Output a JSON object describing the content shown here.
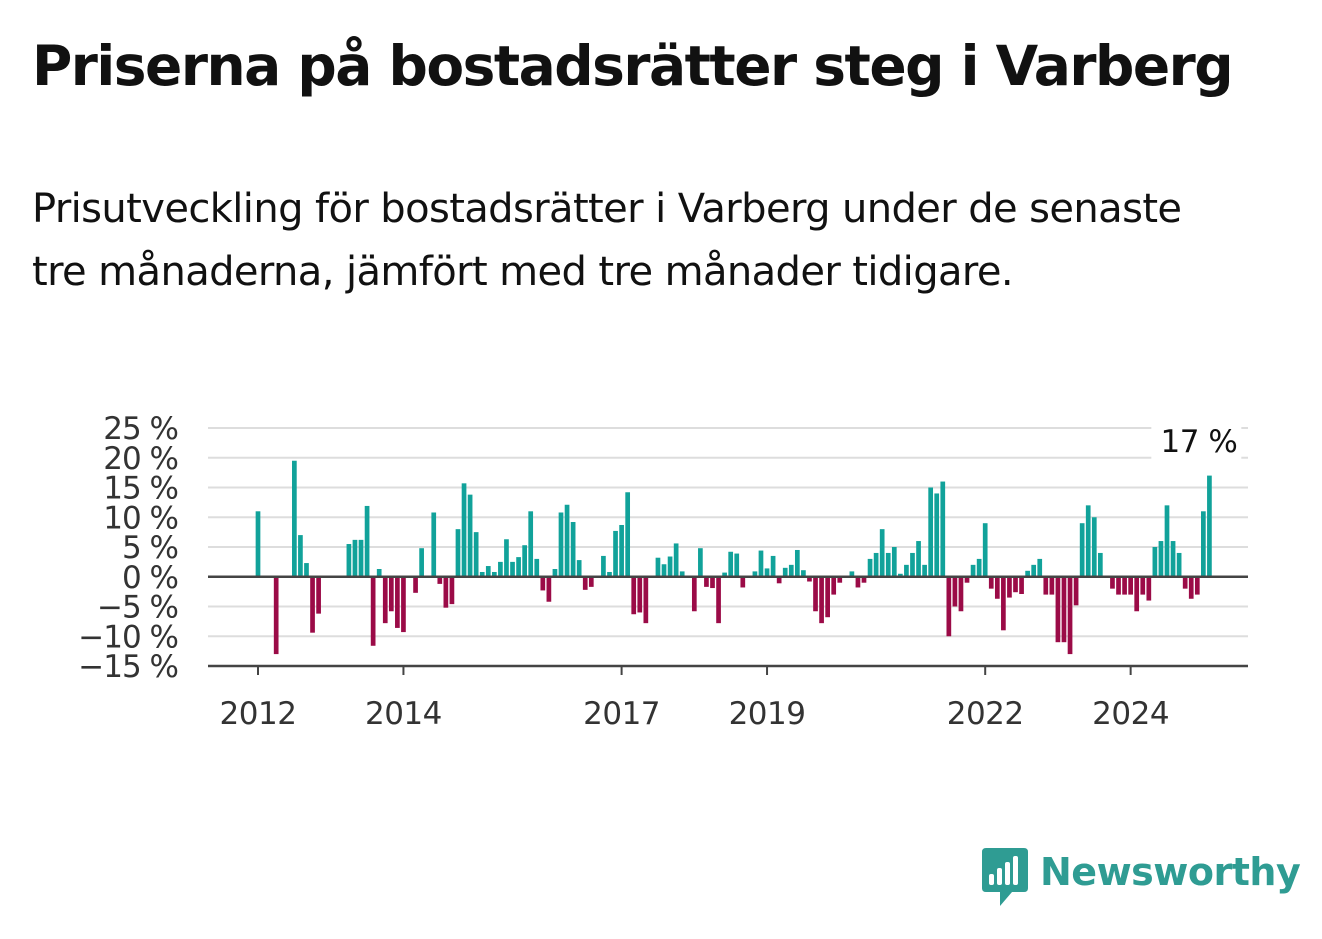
{
  "title": "Priserna på bostadsrätter steg i Varberg",
  "subtitle": "Prisutveckling för bostadsrätter i Varberg under de senaste tre månaderna, jämfört med tre månader tidigare.",
  "brand": {
    "name": "Newsworthy",
    "icon": "newsworthy-logo-icon"
  },
  "colors": {
    "positive": "#11a29a",
    "negative": "#9b0b47",
    "grid": "#dddddd",
    "axis": "#444444",
    "text": "#333333"
  },
  "chart_data": {
    "type": "bar",
    "title": "",
    "xlabel": "",
    "ylabel": "",
    "ylim": [
      -15,
      25
    ],
    "y_ticks": [
      {
        "value": 25,
        "label": "25 %"
      },
      {
        "value": 20,
        "label": "20 %"
      },
      {
        "value": 15,
        "label": "15 %"
      },
      {
        "value": 10,
        "label": "10 %"
      },
      {
        "value": 5,
        "label": "5 %"
      },
      {
        "value": 0,
        "label": "0 %"
      },
      {
        "value": -5,
        "label": "−5 %"
      },
      {
        "value": -10,
        "label": "−10 %"
      },
      {
        "value": -15,
        "label": "−15 %"
      }
    ],
    "x_ticks": [
      {
        "date": "2012-01",
        "label": "2012"
      },
      {
        "date": "2014-01",
        "label": "2014"
      },
      {
        "date": "2017-01",
        "label": "2017"
      },
      {
        "date": "2019-01",
        "label": "2019"
      },
      {
        "date": "2022-01",
        "label": "2022"
      },
      {
        "date": "2024-01",
        "label": "2024"
      }
    ],
    "grid": true,
    "annotation": {
      "date": "2024-12",
      "label": "17 %"
    },
    "series": [
      {
        "start": "2012-01",
        "values": [
          11,
          null,
          null,
          -13,
          null,
          null,
          19.5,
          7,
          2.3,
          -9.4,
          -6.2,
          null,
          null,
          null,
          null,
          5.5,
          6.2,
          6.2,
          11.9,
          -11.6,
          1.3,
          -7.8,
          -5.8,
          -8.6,
          -9.3,
          null,
          -2.7,
          4.8,
          null,
          10.8,
          -1.2,
          -5.2,
          -4.6,
          8,
          15.7,
          13.8,
          7.5,
          0.8,
          1.8,
          0.8,
          2.5,
          6.3,
          2.5,
          3.3,
          5.3,
          11,
          3,
          -2.3,
          -4.2,
          1.3,
          10.8,
          12.1,
          9.2,
          2.8,
          -2.2,
          -1.7,
          null,
          3.5,
          0.8,
          7.7,
          8.7,
          14.2,
          -6.3,
          -6,
          -7.8,
          null,
          3.2,
          2.1,
          3.4,
          5.6,
          0.9,
          null,
          -5.8,
          4.8,
          -1.7,
          -1.9,
          -7.8,
          0.7,
          4.2,
          3.9,
          -1.8,
          null,
          0.9,
          4.4,
          1.4,
          3.5,
          -1.1,
          1.5,
          2,
          4.5,
          1.1,
          -0.8,
          -5.8,
          -7.8,
          -6.8,
          -3,
          -1,
          null,
          0.9,
          -1.8,
          -1,
          3,
          4,
          8,
          4,
          5,
          0.5,
          2,
          4,
          6,
          2,
          15,
          14,
          16,
          -10,
          -5,
          -5.8,
          -1,
          2,
          3,
          9,
          -2,
          -3.7,
          -9,
          -3.5,
          -2.6,
          -2.9,
          1,
          2,
          3,
          -3,
          -3,
          -11,
          -11,
          -13,
          -4.8,
          9,
          12,
          10,
          4,
          null,
          -2,
          -3,
          -3,
          -3,
          -5.8,
          -3,
          -4,
          5,
          6,
          12,
          6,
          4,
          -2,
          -3.7,
          -3,
          11,
          17
        ]
      }
    ]
  }
}
